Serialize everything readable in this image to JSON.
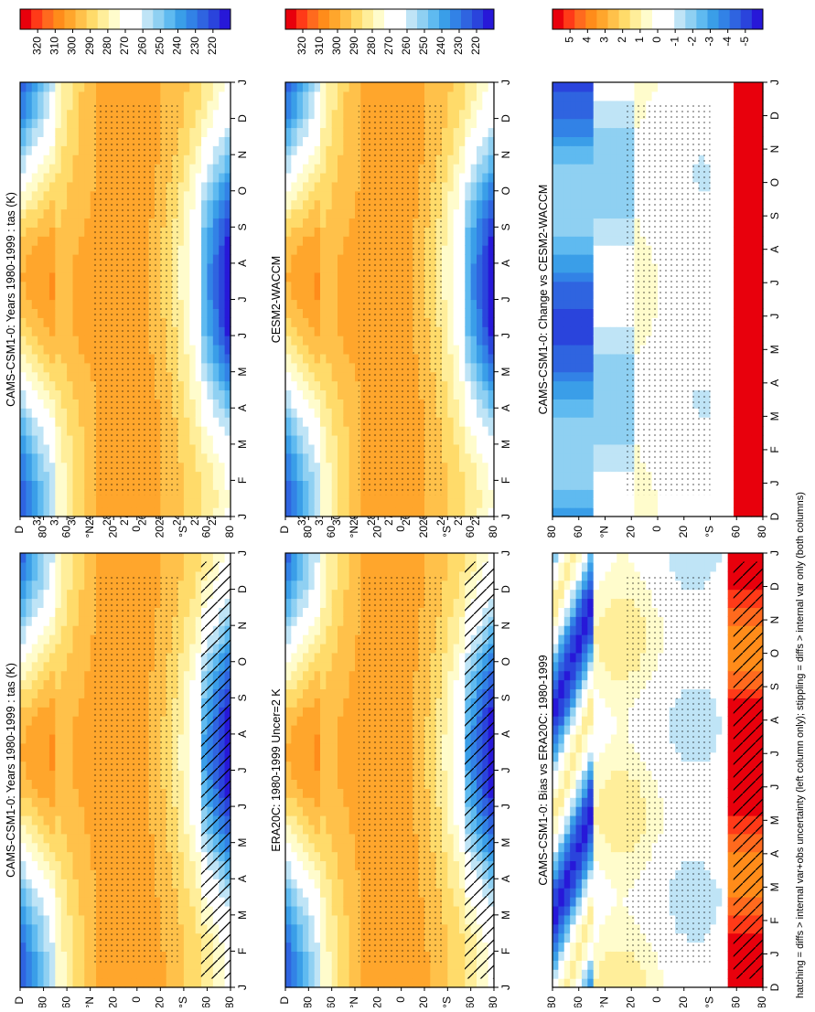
{
  "footer": "hatching = diffs > internal var+obs uncertainty (left column only); stippling = diffs > internal var only (both columns)",
  "colors": {
    "abs_scale": [
      "#e8000c",
      "#ff3a18",
      "#ff6a1e",
      "#ff8c1a",
      "#ffa62c",
      "#ffc14a",
      "#ffdb6a",
      "#ffee9a",
      "#fffccc",
      "#ffffff",
      "#ffffff",
      "#bfe4f6",
      "#8fd0f2",
      "#5fbaf0",
      "#3a9ee8",
      "#3282e6",
      "#2f64e0",
      "#2a44dc",
      "#2718d8"
    ],
    "diff_scale": [
      "#e8000c",
      "#ff3a18",
      "#ff6a1e",
      "#ff8c1a",
      "#ffa62c",
      "#ffc14a",
      "#ffdb6a",
      "#ffee9a",
      "#fffccc",
      "#ffffff",
      "#ffffff",
      "#bfe4f6",
      "#8fd0f2",
      "#5fbaf0",
      "#3a9ee8",
      "#3282e6",
      "#2f64e0",
      "#2a44dc",
      "#2718d8"
    ]
  },
  "chart_data": [
    {
      "type": "heatmap",
      "title": "CAMS-CSM1-0: Years 1980-1999 : tas (K)",
      "x_ticks": [
        "J",
        "F",
        "M",
        "A",
        "M",
        "J",
        "J",
        "A",
        "S",
        "O",
        "N",
        "D",
        "J"
      ],
      "y_ticks": [
        "D",
        "80",
        "60",
        "°N",
        "20",
        "0",
        "20",
        "°S",
        "60",
        "80"
      ],
      "z_var": "temperature",
      "ylim": [
        -90,
        90
      ],
      "hatching": true,
      "colorbar": {
        "labels": [
          "320",
          "310",
          "300",
          "290",
          "280",
          "270",
          "260",
          "250",
          "240",
          "230",
          "220"
        ],
        "range": [
          215,
          325
        ]
      }
    },
    {
      "type": "heatmap",
      "title": "CAMS-CSM1-0: Years 1980-1999 : tas (K)",
      "x_ticks": [
        "J",
        "F",
        "M",
        "A",
        "M",
        "J",
        "J",
        "A",
        "S",
        "O",
        "N",
        "D",
        "J"
      ],
      "y_ticks": [
        "D",
        "80",
        "60",
        "°N",
        "20",
        "0",
        "20",
        "°S",
        "60",
        "80"
      ],
      "z_var": "temperature",
      "ylim": [
        -90,
        90
      ],
      "hatching": false,
      "colorbar": {
        "labels": [
          "320",
          "310",
          "300",
          "290",
          "280",
          "270",
          "260",
          "250",
          "240",
          "230",
          "220"
        ],
        "range": [
          215,
          325
        ]
      }
    },
    {
      "type": "heatmap",
      "title": "ERA20C: 1980-1999 Uncer=2 K",
      "x_ticks": [
        "J",
        "F",
        "M",
        "A",
        "M",
        "J",
        "J",
        "A",
        "S",
        "O",
        "N",
        "D",
        "J"
      ],
      "y_ticks": [
        "D",
        "80",
        "60",
        "°N",
        "20",
        "0",
        "20",
        "°S",
        "60",
        "80"
      ],
      "z_var": "temperature",
      "ylim": [
        -90,
        90
      ],
      "hatching": true,
      "colorbar": {
        "labels": [
          "320",
          "310",
          "300",
          "290",
          "280",
          "270",
          "260",
          "250",
          "240",
          "230",
          "220"
        ],
        "range": [
          215,
          325
        ]
      }
    },
    {
      "type": "heatmap",
      "title": "CESM2-WACCM",
      "x_ticks": [
        "J",
        "F",
        "M",
        "A",
        "M",
        "J",
        "J",
        "A",
        "S",
        "O",
        "N",
        "D",
        "J"
      ],
      "y_ticks": [
        "D",
        "80",
        "60",
        "°N",
        "20",
        "0",
        "20",
        "°S",
        "60",
        "80"
      ],
      "z_var": "temperature",
      "ylim": [
        -90,
        90
      ],
      "hatching": false,
      "colorbar": {
        "labels": [
          "320",
          "310",
          "300",
          "290",
          "280",
          "270",
          "260",
          "250",
          "240",
          "230",
          "220"
        ],
        "range": [
          215,
          325
        ]
      }
    },
    {
      "type": "heatmap",
      "title": "CAMS-CSM1-0: Bias vs ERA20C: 1980-1999",
      "x_ticks": [
        "D",
        "J",
        "F",
        "M",
        "A",
        "M",
        "J",
        "J",
        "A",
        "S",
        "O",
        "N",
        "D",
        "J"
      ],
      "y_ticks": [
        "80",
        "60",
        "°N",
        "20",
        "0",
        "20",
        "°S",
        "60",
        "80"
      ],
      "z_var": "bias",
      "ylim": [
        -90,
        90
      ],
      "hatching": true,
      "colorbar": {
        "labels": [
          "5",
          "4",
          "3",
          "2",
          "1",
          "0",
          "-1",
          "-2",
          "-3",
          "-4",
          "-5"
        ],
        "range": [
          -5.5,
          5.5
        ]
      }
    },
    {
      "type": "heatmap",
      "title": "CAMS-CSM1-0: Change vs CESM2-WACCM",
      "x_ticks": [
        "D",
        "J",
        "F",
        "M",
        "A",
        "M",
        "J",
        "J",
        "A",
        "S",
        "O",
        "N",
        "D",
        "J"
      ],
      "y_ticks": [
        "80",
        "60",
        "°N",
        "20",
        "0",
        "20",
        "°S",
        "60",
        "80"
      ],
      "z_var": "change",
      "ylim": [
        -90,
        90
      ],
      "hatching": false,
      "colorbar": {
        "labels": [
          "5",
          "4",
          "3",
          "2",
          "1",
          "0",
          "-1",
          "-2",
          "-3",
          "-4",
          "-5"
        ],
        "range": [
          -5.5,
          5.5
        ]
      }
    }
  ]
}
